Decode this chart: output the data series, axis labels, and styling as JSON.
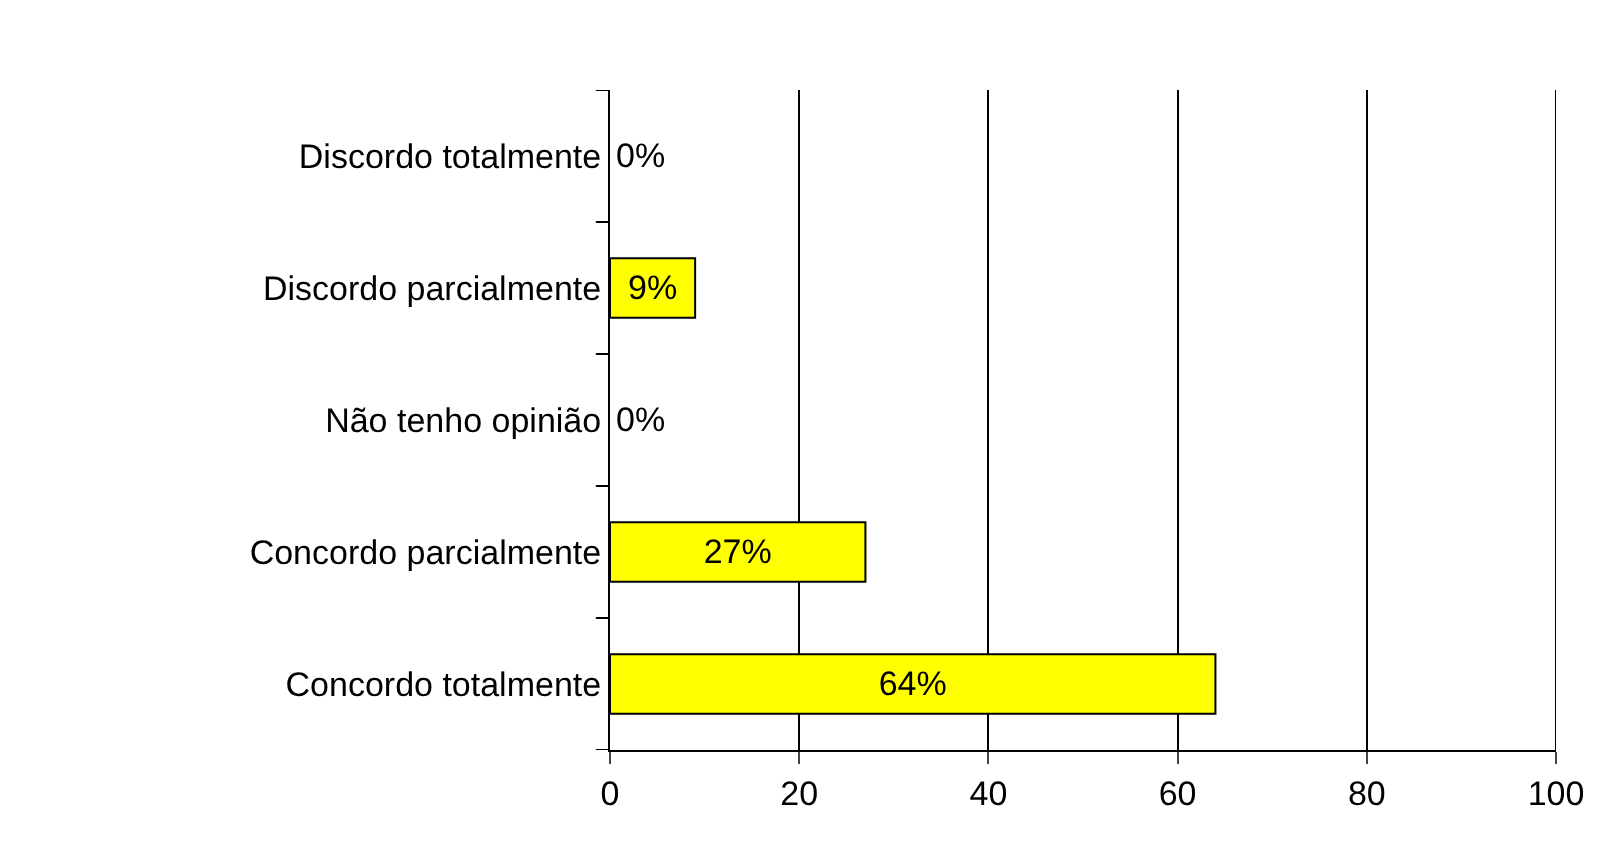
{
  "chart_data": {
    "type": "bar",
    "orientation": "horizontal",
    "categories": [
      "Discordo totalmente",
      "Discordo parcialmente",
      "Não tenho opinião",
      "Concordo parcialmente",
      "Concordo totalmente"
    ],
    "values": [
      0,
      9,
      0,
      27,
      64
    ],
    "value_labels": [
      "0%",
      "9%",
      "0%",
      "27%",
      "64%"
    ],
    "color": "#ffff00",
    "xlim": [
      0,
      100
    ],
    "xticks": [
      0,
      20,
      40,
      60,
      80,
      100
    ],
    "grid": "x",
    "legend": false
  }
}
